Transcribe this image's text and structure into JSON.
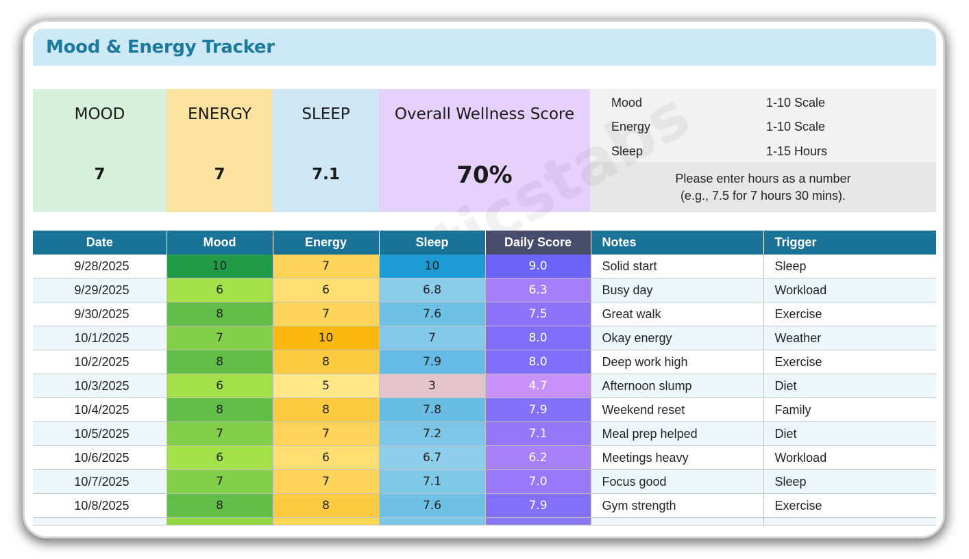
{
  "title": "Mood & Energy Tracker",
  "kpis": {
    "mood": {
      "label": "MOOD",
      "value": "7"
    },
    "energy": {
      "label": "ENERGY",
      "value": "7"
    },
    "sleep": {
      "label": "SLEEP",
      "value": "7.1"
    },
    "wellness": {
      "label": "Overall Wellness Score",
      "value": "70%"
    }
  },
  "legend": {
    "rows": [
      {
        "name": "Mood",
        "scale": "1-10 Scale"
      },
      {
        "name": "Energy",
        "scale": "1-10 Scale"
      },
      {
        "name": "Sleep",
        "scale": "1-15 Hours"
      }
    ],
    "note_line1": "Please enter hours as a number",
    "note_line2": "(e.g., 7.5 for 7 hours 30 mins)."
  },
  "watermark": "analyticstabs",
  "table": {
    "headers": [
      "Date",
      "Mood",
      "Energy",
      "Sleep",
      "Daily Score",
      "Notes",
      "Trigger"
    ],
    "rows": [
      {
        "date": "9/28/2025",
        "mood": "10",
        "energy": "7",
        "sleep": "10",
        "score": "9.0",
        "notes": "Solid start",
        "trigger": "Sleep"
      },
      {
        "date": "9/29/2025",
        "mood": "6",
        "energy": "6",
        "sleep": "6.8",
        "score": "6.3",
        "notes": "Busy day",
        "trigger": "Workload"
      },
      {
        "date": "9/30/2025",
        "mood": "8",
        "energy": "7",
        "sleep": "7.6",
        "score": "7.5",
        "notes": "Great walk",
        "trigger": "Exercise"
      },
      {
        "date": "10/1/2025",
        "mood": "7",
        "energy": "10",
        "sleep": "7",
        "score": "8.0",
        "notes": "Okay energy",
        "trigger": "Weather"
      },
      {
        "date": "10/2/2025",
        "mood": "8",
        "energy": "8",
        "sleep": "7.9",
        "score": "8.0",
        "notes": "Deep work high",
        "trigger": "Exercise"
      },
      {
        "date": "10/3/2025",
        "mood": "6",
        "energy": "5",
        "sleep": "3",
        "score": "4.7",
        "notes": "Afternoon slump",
        "trigger": "Diet"
      },
      {
        "date": "10/4/2025",
        "mood": "8",
        "energy": "8",
        "sleep": "7.8",
        "score": "7.9",
        "notes": "Weekend reset",
        "trigger": "Family"
      },
      {
        "date": "10/5/2025",
        "mood": "7",
        "energy": "7",
        "sleep": "7.2",
        "score": "7.1",
        "notes": "Meal prep helped",
        "trigger": "Diet"
      },
      {
        "date": "10/6/2025",
        "mood": "6",
        "energy": "6",
        "sleep": "6.7",
        "score": "6.2",
        "notes": "Meetings heavy",
        "trigger": "Workload"
      },
      {
        "date": "10/7/2025",
        "mood": "7",
        "energy": "7",
        "sleep": "7.1",
        "score": "7.0",
        "notes": "Focus good",
        "trigger": "Sleep"
      },
      {
        "date": "10/8/2025",
        "mood": "8",
        "energy": "8",
        "sleep": "7.6",
        "score": "7.9",
        "notes": "Gym strength",
        "trigger": "Exercise"
      }
    ]
  }
}
